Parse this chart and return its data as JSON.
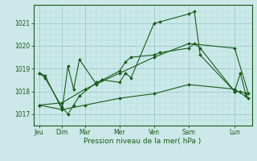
{
  "bg_color": "#cce8e8",
  "grid_color_major": "#99cccc",
  "grid_color_minor": "#aadddd",
  "line_color": "#1a5c1a",
  "marker_color": "#1a5c1a",
  "xlabel": "Pression niveau de la mer( hPa )",
  "xlabel_color": "#1a5c1a",
  "tick_color": "#1a5c1a",
  "ylim": [
    1016.5,
    1021.8
  ],
  "yticks": [
    1017,
    1018,
    1019,
    1020,
    1021
  ],
  "day_labels": [
    "Jeu",
    "Dim",
    "Mar",
    "Mer",
    "Ven",
    "Sam",
    "Lun"
  ],
  "day_positions": [
    0,
    2,
    4,
    7,
    10,
    13,
    17
  ],
  "xmax": 18.5,
  "series": [
    {
      "x": [
        0,
        0.5,
        2,
        2.5,
        3,
        3.5,
        5,
        5.5,
        7,
        7.5,
        8,
        10,
        10.5,
        13,
        13.5,
        14,
        17,
        17.5,
        18
      ],
      "y": [
        1018.8,
        1018.7,
        1017.2,
        1019.1,
        1018.1,
        1019.4,
        1018.3,
        1018.5,
        1018.4,
        1018.8,
        1018.6,
        1021.0,
        1021.05,
        1021.4,
        1021.5,
        1019.6,
        1018.0,
        1018.8,
        1017.8
      ]
    },
    {
      "x": [
        0,
        0.5,
        2,
        2.5,
        3,
        3.5,
        5,
        5.5,
        7,
        7.5,
        8,
        10,
        10.5,
        13,
        13.5,
        14,
        17,
        17.5,
        18
      ],
      "y": [
        1018.8,
        1018.6,
        1017.3,
        1017.0,
        1017.4,
        1017.8,
        1018.4,
        1018.5,
        1018.9,
        1019.3,
        1019.5,
        1019.6,
        1019.7,
        1019.9,
        1020.1,
        1019.9,
        1018.0,
        1018.0,
        1017.9
      ]
    },
    {
      "x": [
        0,
        2,
        4,
        7,
        10,
        13,
        17,
        18.2
      ],
      "y": [
        1017.4,
        1017.2,
        1017.4,
        1017.7,
        1017.9,
        1018.3,
        1018.1,
        1017.7
      ]
    },
    {
      "x": [
        0,
        2,
        4,
        7,
        10,
        13,
        17,
        18.2
      ],
      "y": [
        1017.4,
        1017.5,
        1018.1,
        1018.8,
        1019.5,
        1020.1,
        1019.9,
        1017.9
      ]
    }
  ]
}
